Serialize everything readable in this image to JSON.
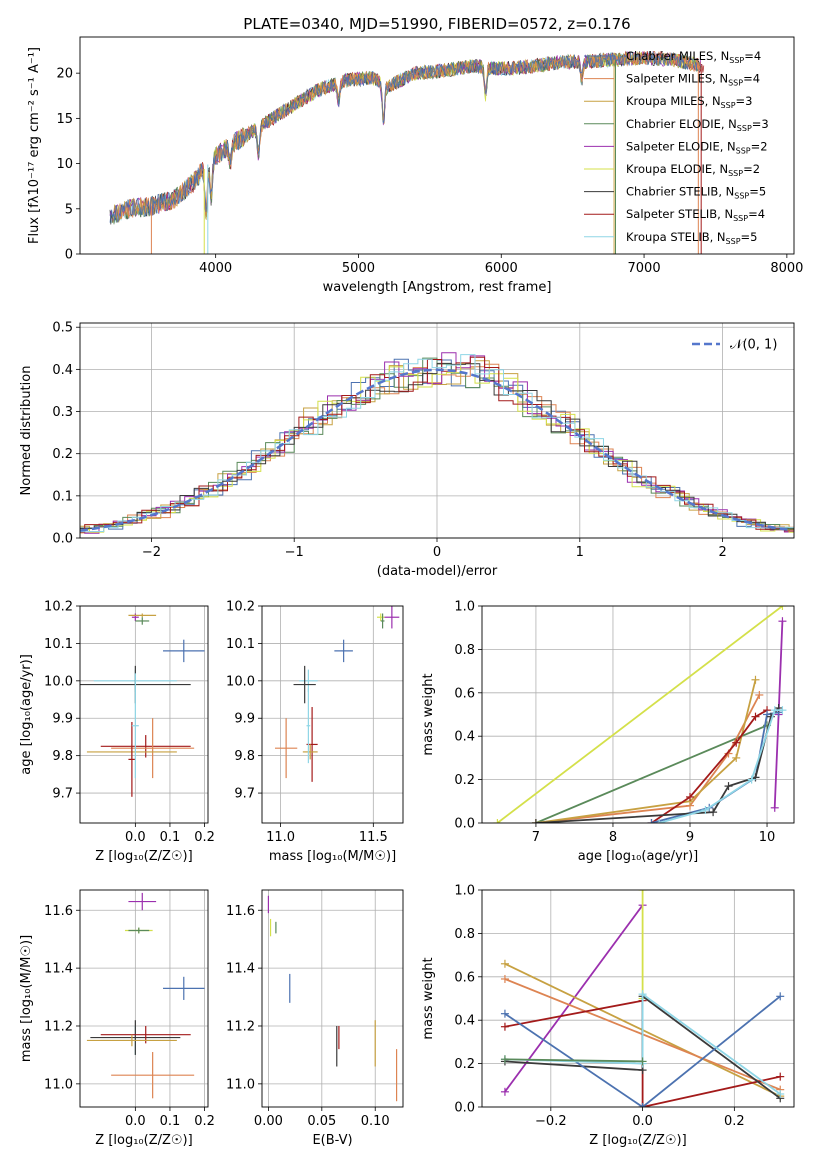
{
  "figure_title": "PLATE=0340, MJD=51990, FIBERID=0572, z=0.176",
  "colors": [
    "#4c72b0",
    "#dd8452",
    "#c7a142",
    "#5a8a5a",
    "#9b2fae",
    "#d4e04a",
    "#3a3a3a",
    "#a31a1a",
    "#8fd6e6"
  ],
  "chart_data": [
    {
      "id": "spectrum",
      "type": "line",
      "xlabel": "wavelength [Angstrom, rest frame]",
      "ylabel": "Flux [fλ10⁻¹⁷ erg cm⁻² s⁻¹ A⁻¹]",
      "xlim": [
        3050,
        8050
      ],
      "ylim": [
        0,
        24
      ],
      "xticks": [
        "4000",
        "5000",
        "6000",
        "7000",
        "8000"
      ],
      "yticks": [
        "0",
        "5",
        "10",
        "15",
        "20"
      ],
      "grid": false,
      "legend_position": "upper-right",
      "legend": [
        "Chabrier MILES, N_SSP=4",
        "Salpeter MILES, N_SSP=4",
        "Kroupa MILES, N_SSP=3",
        "Chabrier ELODIE, N_SSP=3",
        "Salpeter ELODIE, N_SSP=2",
        "Kroupa ELODIE, N_SSP=2",
        "Chabrier STELIB, N_SSP=5",
        "Salpeter STELIB, N_SSP=4",
        "Kroupa STELIB, N_SSP=5"
      ],
      "continuum": {
        "x": [
          3260,
          3400,
          3550,
          3700,
          3850,
          3950,
          4050,
          4200,
          4350,
          4500,
          4700,
          4900,
          5100,
          5200,
          5400,
          5600,
          5800,
          6000,
          6200,
          6400,
          6600,
          6800,
          7000,
          7200,
          7400
        ],
        "y": [
          4.2,
          5.0,
          5.3,
          6.0,
          8.0,
          10.0,
          11.5,
          13.0,
          14.5,
          16.0,
          18.0,
          19.2,
          19.5,
          18.5,
          20.0,
          20.3,
          20.8,
          20.5,
          20.7,
          21.2,
          21.3,
          21.5,
          21.7,
          21.5,
          20.8
        ]
      }
    },
    {
      "id": "residuals",
      "type": "step",
      "xlabel": "(data-model)/error",
      "ylabel": "Normed distribution",
      "xlim": [
        -2.5,
        2.5
      ],
      "ylim": [
        0,
        0.51
      ],
      "xticks": [
        "−2",
        "−1",
        "0",
        "1",
        "2"
      ],
      "yticks": [
        "0.0",
        "0.1",
        "0.2",
        "0.3",
        "0.4",
        "0.5"
      ],
      "grid": true,
      "legend": [
        "𝒩(0, 1)"
      ],
      "legend_position": "upper-right",
      "bin_width": 0.1
    },
    {
      "id": "age_vs_Z",
      "type": "scatter-errorbar",
      "xlabel": "Z [log₁₀(Z/Z☉)]",
      "ylabel": "age  [log₁₀(age/yr)]",
      "xlim": [
        -0.16,
        0.21
      ],
      "ylim": [
        9.62,
        10.2
      ],
      "xticks": [
        "0.0",
        "0.1",
        "0.2"
      ],
      "yticks": [
        "9.7",
        "9.8",
        "9.9",
        "10.0",
        "10.1",
        "10.2"
      ],
      "grid": true,
      "points": [
        {
          "c": 0,
          "x": 0.14,
          "y": 10.08,
          "xe": 0.06,
          "ye": 0.03
        },
        {
          "c": 8,
          "x": 0.0,
          "y": 10.0,
          "xe": 0.12,
          "ye": 0.03
        },
        {
          "c": 6,
          "x": 0.0,
          "y": 9.99,
          "xe": 0.16,
          "ye": 0.05
        },
        {
          "c": 4,
          "x": 0.0,
          "y": 10.17,
          "xe": 0.01,
          "ye": 0.01
        },
        {
          "c": 2,
          "x": 0.02,
          "y": 10.175,
          "xe": 0.04,
          "ye": 0.005
        },
        {
          "c": 7,
          "x": 0.03,
          "y": 9.825,
          "xe": 0.13,
          "ye": 0.03
        },
        {
          "c": 1,
          "x": 0.05,
          "y": 9.82,
          "xe": 0.12,
          "ye": 0.08
        },
        {
          "c": 3,
          "x": 0.02,
          "y": 10.16,
          "xe": 0.02,
          "ye": 0.01
        },
        {
          "c": 2,
          "x": -0.01,
          "y": 9.81,
          "xe": 0.13,
          "ye": 0.02
        },
        {
          "c": 7,
          "x": -0.01,
          "y": 9.79,
          "xe": 0.01,
          "ye": 0.1
        },
        {
          "c": 8,
          "x": 0.0,
          "y": 9.88,
          "xe": 0.01,
          "ye": 0.14
        }
      ]
    },
    {
      "id": "age_vs_mass",
      "type": "scatter-errorbar",
      "xlabel": "mass [log₁₀(M/M☉)]",
      "ylabel": "",
      "xlim": [
        10.9,
        11.66
      ],
      "ylim": [
        9.62,
        10.2
      ],
      "xticks": [
        "11.0",
        "11.5"
      ],
      "yticks": [
        "9.7",
        "9.8",
        "9.9",
        "10.0",
        "10.1",
        "10.2"
      ],
      "grid": true,
      "points": [
        {
          "c": 0,
          "x": 11.34,
          "y": 10.08,
          "xe": 0.05,
          "ye": 0.03
        },
        {
          "c": 8,
          "x": 11.15,
          "y": 10.0,
          "xe": 0.05,
          "ye": 0.03
        },
        {
          "c": 6,
          "x": 11.13,
          "y": 9.99,
          "xe": 0.06,
          "ye": 0.05
        },
        {
          "c": 4,
          "x": 11.6,
          "y": 10.17,
          "xe": 0.04,
          "ye": 0.03
        },
        {
          "c": 5,
          "x": 11.54,
          "y": 10.17,
          "xe": 0.02,
          "ye": 0.01
        },
        {
          "c": 3,
          "x": 11.55,
          "y": 10.16,
          "xe": 0.01,
          "ye": 0.02
        },
        {
          "c": 7,
          "x": 11.17,
          "y": 9.83,
          "xe": 0.03,
          "ye": 0.1
        },
        {
          "c": 1,
          "x": 11.03,
          "y": 9.82,
          "xe": 0.06,
          "ye": 0.08
        },
        {
          "c": 2,
          "x": 11.16,
          "y": 9.81,
          "xe": 0.04,
          "ye": 0.02
        },
        {
          "c": 8,
          "x": 11.15,
          "y": 9.88,
          "xe": 0.01,
          "ye": 0.1
        }
      ]
    },
    {
      "id": "massweight_vs_age",
      "type": "line",
      "xlabel": "age  [log₁₀(age/yr)]",
      "ylabel": "mass weight",
      "xlim": [
        6.3,
        10.35
      ],
      "ylim": [
        0,
        1
      ],
      "xticks": [
        "7",
        "8",
        "9",
        "10"
      ],
      "yticks": [
        "0.0",
        "0.2",
        "0.4",
        "0.6",
        "0.8",
        "1.0"
      ],
      "grid": true,
      "series": [
        {
          "c": 5,
          "x": [
            6.5,
            10.2
          ],
          "y": [
            0.0,
            1.0
          ]
        },
        {
          "c": 3,
          "x": [
            7.0,
            10.0
          ],
          "y": [
            0.0,
            0.45
          ]
        },
        {
          "c": 4,
          "x": [
            10.1,
            10.15,
            10.2
          ],
          "y": [
            0.07,
            0.5,
            0.93
          ]
        },
        {
          "c": 1,
          "x": [
            7.0,
            9.0,
            9.5,
            9.9
          ],
          "y": [
            0.0,
            0.08,
            0.32,
            0.59
          ]
        },
        {
          "c": 2,
          "x": [
            7.0,
            9.0,
            9.6,
            9.85
          ],
          "y": [
            0.0,
            0.1,
            0.3,
            0.66
          ]
        },
        {
          "c": 7,
          "x": [
            8.5,
            9.0,
            9.6,
            9.85,
            10.0
          ],
          "y": [
            0.0,
            0.12,
            0.37,
            0.49,
            0.52
          ]
        },
        {
          "c": 0,
          "x": [
            8.5,
            9.25,
            9.85,
            10.0,
            10.15
          ],
          "y": [
            0.0,
            0.07,
            0.21,
            0.5,
            0.51
          ]
        },
        {
          "c": 6,
          "x": [
            7.0,
            9.3,
            9.5,
            9.85,
            10.05,
            10.15
          ],
          "y": [
            0.0,
            0.05,
            0.17,
            0.21,
            0.49,
            0.53
          ]
        },
        {
          "c": 8,
          "x": [
            8.6,
            9.2,
            9.8,
            10.1,
            10.2
          ],
          "y": [
            0.0,
            0.06,
            0.2,
            0.52,
            0.52
          ]
        }
      ]
    },
    {
      "id": "mass_vs_Z",
      "type": "scatter-errorbar",
      "xlabel": "Z [log₁₀(Z/Z☉)]",
      "ylabel": "mass [log₁₀(M/M☉)]",
      "xlim": [
        -0.16,
        0.21
      ],
      "ylim": [
        10.92,
        11.67
      ],
      "xticks": [
        "0.0",
        "0.1",
        "0.2"
      ],
      "yticks": [
        "11.0",
        "11.2",
        "11.4",
        "11.6"
      ],
      "grid": true,
      "points": [
        {
          "c": 0,
          "x": 0.14,
          "y": 11.33,
          "xe": 0.06,
          "ye": 0.04
        },
        {
          "c": 4,
          "x": 0.02,
          "y": 11.63,
          "xe": 0.04,
          "ye": 0.03
        },
        {
          "c": 5,
          "x": 0.01,
          "y": 11.53,
          "xe": 0.04,
          "ye": 0.01
        },
        {
          "c": 3,
          "x": 0.01,
          "y": 11.53,
          "xe": 0.03,
          "ye": 0.01
        },
        {
          "c": 8,
          "x": 0.0,
          "y": 11.15,
          "xe": 0.1,
          "ye": 0.05
        },
        {
          "c": 6,
          "x": 0.0,
          "y": 11.16,
          "xe": 0.13,
          "ye": 0.06
        },
        {
          "c": 7,
          "x": 0.03,
          "y": 11.17,
          "xe": 0.13,
          "ye": 0.03
        },
        {
          "c": 2,
          "x": -0.01,
          "y": 11.15,
          "xe": 0.13,
          "ye": 0.02
        },
        {
          "c": 1,
          "x": 0.05,
          "y": 11.03,
          "xe": 0.12,
          "ye": 0.08
        }
      ]
    },
    {
      "id": "mass_vs_EBV",
      "type": "scatter-errorbar",
      "xlabel": "E(B-V)",
      "ylabel": "",
      "xlim": [
        -0.006,
        0.126
      ],
      "ylim": [
        10.92,
        11.67
      ],
      "xticks": [
        "0.00",
        "0.05",
        "0.10"
      ],
      "yticks": [
        "11.0",
        "11.2",
        "11.4",
        "11.6"
      ],
      "grid": true,
      "points": [
        {
          "c": 4,
          "x": 0.0,
          "y": 11.62,
          "xe": 0.0,
          "ye": 0.03
        },
        {
          "c": 5,
          "x": 0.002,
          "y": 11.54,
          "xe": 0.0,
          "ye": 0.03
        },
        {
          "c": 3,
          "x": 0.007,
          "y": 11.54,
          "xe": 0.0,
          "ye": 0.02
        },
        {
          "c": 0,
          "x": 0.02,
          "y": 11.33,
          "xe": 0.0,
          "ye": 0.05
        },
        {
          "c": 6,
          "x": 0.064,
          "y": 11.13,
          "xe": 0.0,
          "ye": 0.07
        },
        {
          "c": 7,
          "x": 0.066,
          "y": 11.16,
          "xe": 0.0,
          "ye": 0.04
        },
        {
          "c": 2,
          "x": 0.1,
          "y": 11.14,
          "xe": 0.0,
          "ye": 0.08
        },
        {
          "c": 1,
          "x": 0.12,
          "y": 11.03,
          "xe": 0.0,
          "ye": 0.09
        }
      ]
    },
    {
      "id": "massweight_vs_Z",
      "type": "line",
      "xlabel": "Z [log₁₀(Z/Z☉)]",
      "ylabel": "mass weight",
      "xlim": [
        -0.35,
        0.33
      ],
      "ylim": [
        0,
        1
      ],
      "xticks": [
        "−0.2",
        "0.0",
        "0.2"
      ],
      "yticks": [
        "0.0",
        "0.2",
        "0.4",
        "0.6",
        "0.8",
        "1.0"
      ],
      "grid": true,
      "series": [
        {
          "c": 4,
          "x": [
            -0.3,
            0.0
          ],
          "y": [
            0.07,
            0.93
          ]
        },
        {
          "c": 5,
          "x": [
            0.0,
            0.0
          ],
          "y": [
            0.5,
            1.0
          ]
        },
        {
          "c": 2,
          "x": [
            -0.3,
            0.3
          ],
          "y": [
            0.66,
            0.05
          ]
        },
        {
          "c": 1,
          "x": [
            -0.3,
            0.3
          ],
          "y": [
            0.59,
            0.08
          ]
        },
        {
          "c": 7,
          "x": [
            -0.3,
            0.0,
            0.0,
            0.3
          ],
          "y": [
            0.37,
            0.49,
            0.0,
            0.14
          ]
        },
        {
          "c": 6,
          "x": [
            -0.3,
            0.0,
            0.0,
            0.3
          ],
          "y": [
            0.21,
            0.17,
            0.51,
            0.04
          ]
        },
        {
          "c": 0,
          "x": [
            -0.3,
            0.0,
            0.3
          ],
          "y": [
            0.43,
            0.0,
            0.51
          ]
        },
        {
          "c": 8,
          "x": [
            -0.3,
            0.0,
            0.0,
            0.3
          ],
          "y": [
            0.22,
            0.2,
            0.52,
            0.06
          ]
        },
        {
          "c": 3,
          "x": [
            -0.3,
            0.0
          ],
          "y": [
            0.22,
            0.21
          ]
        }
      ]
    }
  ]
}
